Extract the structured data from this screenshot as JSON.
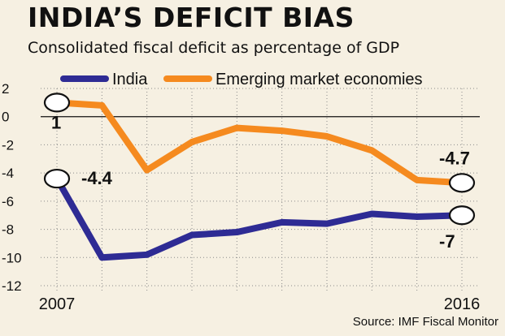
{
  "header": {
    "title": "INDIA’S DEFICIT BIAS",
    "subtitle": "Consolidated fiscal deficit as percentage of GDP"
  },
  "footer": {
    "source": "Source: IMF Fiscal Monitor"
  },
  "colors": {
    "india": "#2e2b94",
    "emerging": "#f58a1f",
    "background": "#f6f0e2"
  },
  "chart_data": {
    "type": "line",
    "title": "INDIA’S DEFICIT BIAS",
    "subtitle": "Consolidated fiscal deficit as percentage of GDP",
    "x": [
      2007,
      2008,
      2009,
      2010,
      2011,
      2012,
      2013,
      2014,
      2015,
      2016
    ],
    "x_tick_labels": [
      "2007",
      "2016"
    ],
    "ylim": [
      -12,
      2
    ],
    "y_ticks": [
      2,
      0,
      -2,
      -4,
      -6,
      -8,
      -10,
      -12
    ],
    "grid": true,
    "legend_position": "top",
    "series": [
      {
        "name": "India",
        "color": "#2e2b94",
        "values": [
          -4.4,
          -10.0,
          -9.8,
          -8.4,
          -8.2,
          -7.5,
          -7.6,
          -6.9,
          -7.1,
          -7.0
        ]
      },
      {
        "name": "Emerging market economies",
        "color": "#f58a1f",
        "values": [
          1.0,
          0.8,
          -3.8,
          -1.8,
          -0.8,
          -1.0,
          -1.4,
          -2.4,
          -4.5,
          -4.7
        ]
      }
    ],
    "annotations": [
      {
        "series": 0,
        "index": 0,
        "text": "-4.4"
      },
      {
        "series": 0,
        "index": 9,
        "text": "-7"
      },
      {
        "series": 1,
        "index": 0,
        "text": "1"
      },
      {
        "series": 1,
        "index": 9,
        "text": "-4.7"
      }
    ]
  }
}
